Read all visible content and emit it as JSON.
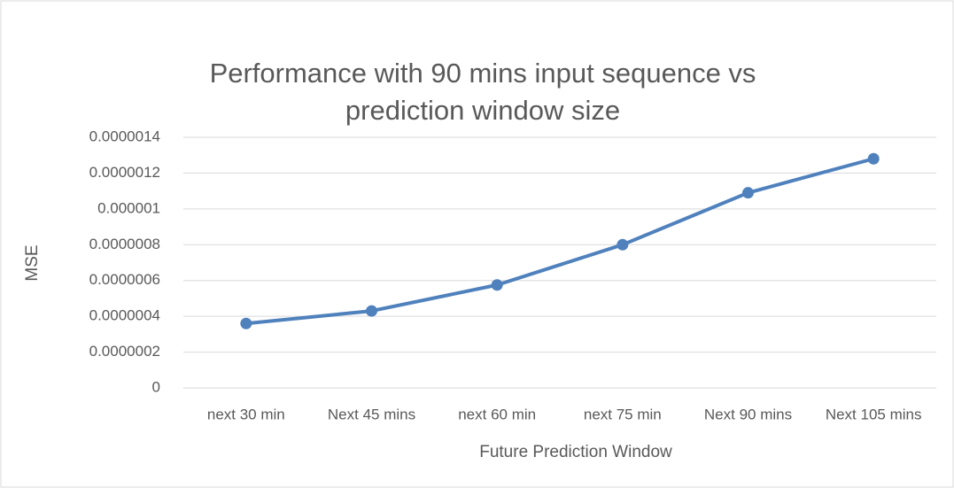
{
  "chart_data": {
    "type": "line",
    "title": "Performance with 90 mins input sequence vs prediction window size",
    "x_label": "Future Prediction Window",
    "y_label": "MSE",
    "categories": [
      "next 30 min",
      "Next 45 mins",
      "next 60 min",
      "next 75 min",
      "Next 90 mins",
      "Next 105 mins"
    ],
    "series": [
      {
        "name": "MSE",
        "color": "#4f81bd",
        "values": [
          3.6e-07,
          4.3e-07,
          5.75e-07,
          8e-07,
          1.09e-06,
          1.28e-06
        ]
      }
    ],
    "ylim": [
      0,
      1.4e-06
    ],
    "yticks": [
      0,
      {
        "value": 2e-07,
        "label": "0.0000002"
      },
      {
        "value": 4e-07,
        "label": "0.0000004"
      },
      {
        "value": 6e-07,
        "label": "0.0000006"
      },
      {
        "value": 8e-07,
        "label": "0.0000008"
      },
      1e-06,
      1.2e-06,
      1.4e-06
    ],
    "grid": true
  }
}
